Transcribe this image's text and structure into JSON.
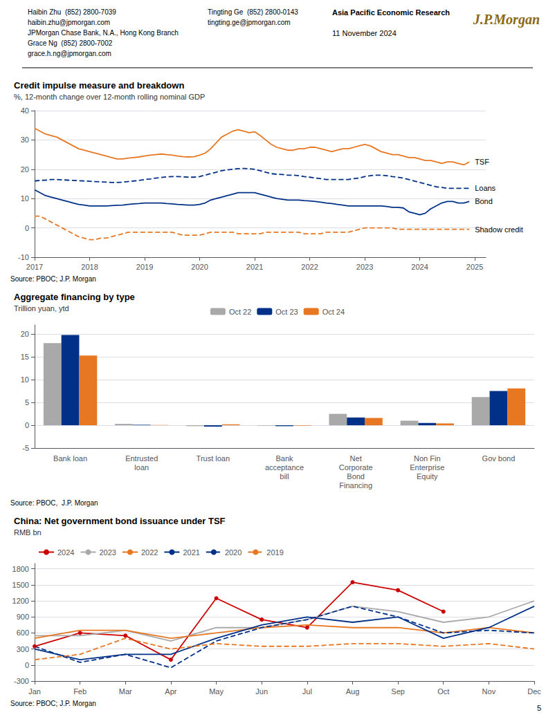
{
  "header": {
    "left_col1": [
      "Haibin Zhu  (852) 2800-7039",
      "haibin.zhu@jpmorgan.com",
      "JPMorgan Chase Bank, N.A., Hong Kong Branch",
      "Grace Ng  (852) 2800-7002",
      "grace.h.ng@jpmorgan.com"
    ],
    "left_col2": [
      "Tingting Ge  (852) 2800-0143",
      "tingting.ge@jpmorgan.com"
    ],
    "center": [
      "Asia Pacific Economic Research",
      "11 November 2024"
    ],
    "logo": "J.P.Morgan",
    "logo_color": "#8B6914"
  },
  "page_num": "5",
  "chart_data": [
    {
      "type": "line",
      "title": "Credit impulse measure and breakdown",
      "subtitle": "%, 12-month change over 12-month rolling nominal GDP",
      "annotations": [
        "Source: PBOC; J.P. Morgan"
      ],
      "xlim": [
        2017.0,
        2025.2
      ],
      "xticks": [
        2017,
        2018,
        2019,
        2020,
        2021,
        2022,
        2023,
        2024,
        2025
      ],
      "ylim": [
        -10,
        40
      ],
      "yticks": [
        -10,
        0,
        10,
        20,
        30,
        40
      ],
      "grid": true,
      "x": [
        2017.0,
        2017.1,
        2017.2,
        2017.3,
        2017.4,
        2017.5,
        2017.6,
        2017.7,
        2017.8,
        2017.9,
        2018.0,
        2018.1,
        2018.2,
        2018.3,
        2018.4,
        2018.5,
        2018.6,
        2018.7,
        2018.8,
        2018.9,
        2019.0,
        2019.1,
        2019.2,
        2019.3,
        2019.4,
        2019.5,
        2019.6,
        2019.7,
        2019.8,
        2019.9,
        2020.0,
        2020.1,
        2020.2,
        2020.3,
        2020.4,
        2020.5,
        2020.6,
        2020.7,
        2020.8,
        2020.9,
        2021.0,
        2021.1,
        2021.2,
        2021.3,
        2021.4,
        2021.5,
        2021.6,
        2021.7,
        2021.8,
        2021.9,
        2022.0,
        2022.1,
        2022.2,
        2022.3,
        2022.4,
        2022.5,
        2022.6,
        2022.7,
        2022.8,
        2022.9,
        2023.0,
        2023.1,
        2023.2,
        2023.3,
        2023.4,
        2023.5,
        2023.6,
        2023.7,
        2023.8,
        2023.9,
        2024.0,
        2024.1,
        2024.2,
        2024.3,
        2024.4,
        2024.5,
        2024.6,
        2024.7,
        2024.8,
        2024.9
      ],
      "series": [
        {
          "name": "TSF",
          "color": "#E87722",
          "line_style": "solid",
          "values": [
            34,
            33,
            32,
            31.5,
            31,
            30,
            29,
            28,
            27,
            26.5,
            26,
            25.5,
            25,
            24.5,
            24,
            23.5,
            23.5,
            23.8,
            24,
            24.2,
            24.5,
            24.8,
            25,
            25.2,
            25.0,
            24.8,
            24.5,
            24.3,
            24.2,
            24.3,
            24.8,
            25.5,
            27,
            29,
            31,
            32,
            33,
            33.5,
            33,
            32.5,
            32.8,
            31.5,
            30,
            28.5,
            27.5,
            27,
            26.5,
            26.5,
            27,
            27,
            27.5,
            27.5,
            27,
            26.5,
            26,
            26.5,
            27,
            27,
            27.5,
            28,
            28.5,
            28,
            27,
            26,
            25.5,
            25,
            25,
            24.5,
            24,
            24,
            23.5,
            23,
            23,
            22.5,
            22,
            22.5,
            22.5,
            22.0,
            21.5,
            22.5
          ]
        },
        {
          "name": "Loans",
          "color": "#003087",
          "line_style": "dashed",
          "values": [
            16,
            16.2,
            16.3,
            16.5,
            16.5,
            16.4,
            16.3,
            16.2,
            16.1,
            16.0,
            15.9,
            15.8,
            15.7,
            15.6,
            15.5,
            15.5,
            15.6,
            15.8,
            16.0,
            16.2,
            16.5,
            16.7,
            17.0,
            17.2,
            17.4,
            17.5,
            17.5,
            17.4,
            17.3,
            17.3,
            17.5,
            18.0,
            18.5,
            19.0,
            19.5,
            19.8,
            20.0,
            20.2,
            20.3,
            20.2,
            20.0,
            19.5,
            19.0,
            18.5,
            18.3,
            18.2,
            18.0,
            18.0,
            17.8,
            17.5,
            17.3,
            17.0,
            16.8,
            16.5,
            16.5,
            16.5,
            16.5,
            16.5,
            16.8,
            17.0,
            17.5,
            17.8,
            18.0,
            18.0,
            17.8,
            17.5,
            17.3,
            17.0,
            16.5,
            16.0,
            15.5,
            15.0,
            14.5,
            14.0,
            13.8,
            13.5,
            13.5,
            13.5,
            13.5,
            13.5
          ]
        },
        {
          "name": "Bond",
          "color": "#003087",
          "line_style": "solid",
          "values": [
            13,
            12,
            11,
            10.5,
            10,
            9.5,
            9,
            8.5,
            8,
            7.8,
            7.5,
            7.5,
            7.5,
            7.5,
            7.6,
            7.7,
            7.8,
            8.0,
            8.2,
            8.3,
            8.5,
            8.5,
            8.5,
            8.5,
            8.3,
            8.2,
            8.0,
            7.9,
            7.8,
            7.8,
            8.0,
            8.5,
            9.5,
            10,
            10.5,
            11,
            11.5,
            12,
            12,
            12,
            12,
            11.5,
            11,
            10.5,
            10,
            9.8,
            9.5,
            9.5,
            9.5,
            9.3,
            9.2,
            9,
            8.8,
            8.5,
            8.3,
            8.0,
            7.8,
            7.5,
            7.5,
            7.5,
            7.5,
            7.5,
            7.5,
            7.5,
            7.3,
            7.0,
            7.0,
            6.8,
            5.5,
            5.0,
            4.5,
            5.0,
            6.5,
            7.5,
            8.5,
            9.0,
            9.0,
            8.5,
            8.5,
            9.0
          ]
        },
        {
          "name": "Shadow credit",
          "color": "#E87722",
          "line_style": "dashed",
          "values": [
            4,
            4,
            3,
            2,
            1,
            0,
            -1,
            -2,
            -3,
            -3.5,
            -4,
            -4,
            -3.5,
            -3.5,
            -3,
            -2.5,
            -2,
            -1.5,
            -1.5,
            -1.5,
            -1.5,
            -1.5,
            -1.5,
            -1.5,
            -1.5,
            -1.5,
            -2,
            -2.5,
            -2.5,
            -2.5,
            -2.5,
            -2,
            -1.5,
            -1.5,
            -1.5,
            -1.5,
            -1.5,
            -2,
            -2,
            -2,
            -2,
            -2,
            -1.5,
            -1.5,
            -1.5,
            -1.5,
            -1.5,
            -1.5,
            -1.5,
            -2,
            -2,
            -2,
            -2,
            -1.5,
            -1.5,
            -1.5,
            -1.5,
            -1.5,
            -1,
            -0.5,
            0,
            0,
            0,
            0,
            0,
            0,
            -0.5,
            -0.5,
            -0.5,
            -0.5,
            -0.5,
            -0.5,
            -0.5,
            -0.5,
            -0.5,
            -0.5,
            -0.5,
            -0.5,
            -0.5,
            -0.5
          ]
        }
      ]
    },
    {
      "type": "bar",
      "title": "Aggregate financing by type",
      "subtitle": "Trillion yuan, ytd",
      "annotations": [
        "Source: PBOC,  J.P. Morgan"
      ],
      "categories": [
        "Bank loan",
        "Entrusted\nloan",
        "Trust loan",
        "Bank\nacceptance\nbill",
        "Net\nCorporate\nBond\nFinancing",
        "Non Fin\nEnterprise\nEquity",
        "Gov bond"
      ],
      "series": [
        {
          "name": "Oct 22",
          "color": "#A9A9A9",
          "values": [
            18.0,
            0.3,
            -0.2,
            -0.1,
            2.5,
            1.0,
            6.2
          ]
        },
        {
          "name": "Oct 23",
          "color": "#003087",
          "values": [
            19.8,
            0.1,
            -0.3,
            -0.2,
            1.7,
            0.5,
            7.5
          ]
        },
        {
          "name": "Oct 24",
          "color": "#E87722",
          "values": [
            15.3,
            0.05,
            0.2,
            -0.1,
            1.6,
            0.4,
            8.1
          ]
        }
      ],
      "ylim": [
        -5,
        22
      ],
      "yticks": [
        -5,
        0,
        5,
        10,
        15,
        20
      ],
      "grid": true,
      "legend": "upper center"
    },
    {
      "type": "line",
      "title": "China: Net government bond issuance under TSF",
      "subtitle": "RMB bn",
      "annotations": [
        "Source: PBOC; J.P. Morgan"
      ],
      "categories": [
        "Jan",
        "Feb",
        "Mar",
        "Apr",
        "May",
        "Jun",
        "Jul",
        "Aug",
        "Sep",
        "Oct",
        "Nov",
        "Dec"
      ],
      "series": [
        {
          "name": "2024",
          "color": "#CC0000",
          "line_style": "solid",
          "marker": "circle",
          "values": [
            350,
            600,
            550,
            100,
            1250,
            850,
            700,
            1550,
            1400,
            1000,
            null,
            null
          ]
        },
        {
          "name": "2023",
          "color": "#A9A9A9",
          "line_style": "solid",
          "marker": "none",
          "values": [
            550,
            550,
            650,
            450,
            700,
            700,
            850,
            1100,
            1000,
            800,
            900,
            1200
          ]
        },
        {
          "name": "2022",
          "color": "#E87722",
          "line_style": "solid",
          "marker": "none",
          "values": [
            500,
            650,
            650,
            500,
            600,
            700,
            750,
            700,
            700,
            600,
            700,
            600
          ]
        },
        {
          "name": "2021",
          "color": "#003087",
          "line_style": "solid",
          "marker": "none",
          "values": [
            300,
            100,
            200,
            200,
            500,
            750,
            900,
            800,
            900,
            500,
            700,
            1100
          ]
        },
        {
          "name": "2020",
          "color": "#003087",
          "line_style": "dashed",
          "marker": "none",
          "values": [
            350,
            50,
            200,
            -50,
            450,
            700,
            850,
            1100,
            900,
            600,
            650,
            600
          ]
        },
        {
          "name": "2019",
          "color": "#E87722",
          "line_style": "dashed",
          "marker": "none",
          "values": [
            100,
            200,
            500,
            300,
            400,
            350,
            350,
            400,
            400,
            350,
            400,
            300
          ]
        }
      ],
      "ylim": [
        -300,
        1900
      ],
      "yticks": [
        -300,
        0,
        300,
        600,
        900,
        1200,
        1500,
        1800
      ],
      "grid": true,
      "legend": "upper left"
    }
  ]
}
